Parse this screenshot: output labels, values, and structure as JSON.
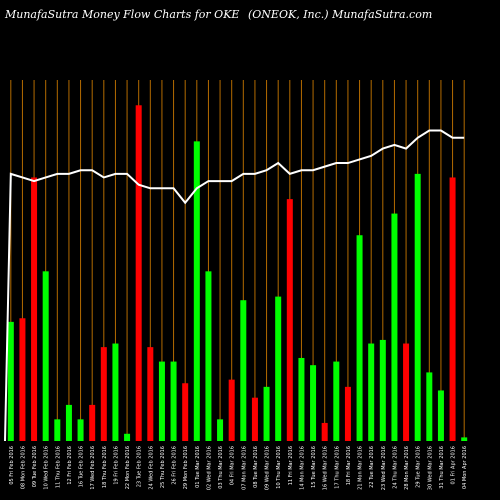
{
  "chart_data": {
    "type": "bar",
    "title": "MunafaSutra  Money Flow  Charts for OKE",
    "subtitle": "(ONEOK,  Inc.) MunafaSutra.com",
    "xlabel": "",
    "ylabel": "",
    "ylim": [
      0,
      100
    ],
    "grid": true,
    "colors": {
      "up": "#00ff00",
      "down": "#ff0000",
      "grid": "#b36b00",
      "line": "#ffffff",
      "background": "#000000"
    },
    "categories": [
      "05 Fri Feb 2016",
      "08 Mon Feb 2016",
      "09 Tue Feb 2016",
      "10 Wed Feb 2016",
      "11 Thu Feb 2016",
      "12 Fri Feb 2016",
      "16 Tue Feb 2016",
      "17 Wed Feb 2016",
      "18 Thu Feb 2016",
      "19 Fri Feb 2016",
      "22 Mon Feb 2016",
      "23 Tue Feb 2016",
      "24 Wed Feb 2016",
      "25 Thu Feb 2016",
      "26 Fri Feb 2016",
      "29 Mon Feb 2016",
      "01 Tue Mar 2016",
      "02 Wed Mar 2016",
      "03 Thu Mar 2016",
      "04 Fri Mar 2016",
      "07 Mon Mar 2016",
      "08 Tue Mar 2016",
      "09 Wed Mar 2016",
      "10 Thu Mar 2016",
      "11 Fri Mar 2016",
      "14 Mon Mar 2016",
      "15 Tue Mar 2016",
      "16 Wed Mar 2016",
      "17 Thu Mar 2016",
      "18 Fri Mar 2016",
      "21 Mon Mar 2016",
      "22 Tue Mar 2016",
      "23 Wed Mar 2016",
      "24 Thu Mar 2016",
      "28 Mon Mar 2016",
      "29 Tue Mar 2016",
      "30 Wed Mar 2016",
      "31 Thu Mar 2016",
      "01 Fri Apr 2016",
      "04 Mon Apr 2016"
    ],
    "bars": {
      "values": [
        33,
        34,
        73,
        47,
        6,
        10,
        6,
        10,
        26,
        27,
        2,
        93,
        26,
        22,
        22,
        16,
        83,
        47,
        6,
        17,
        39,
        12,
        15,
        40,
        67,
        23,
        21,
        5,
        22,
        15,
        57,
        27,
        28,
        63,
        27,
        74,
        19,
        14,
        73,
        1
      ],
      "direction": [
        "up",
        "down",
        "down",
        "up",
        "up",
        "up",
        "up",
        "down",
        "down",
        "up",
        "up",
        "down",
        "down",
        "up",
        "up",
        "down",
        "up",
        "up",
        "up",
        "down",
        "up",
        "down",
        "up",
        "up",
        "down",
        "up",
        "up",
        "down",
        "up",
        "down",
        "up",
        "up",
        "up",
        "up",
        "down",
        "up",
        "up",
        "up",
        "down",
        "up"
      ]
    },
    "line": {
      "values": [
        74,
        73,
        72,
        73,
        74,
        74,
        75,
        75,
        73,
        74,
        74,
        71,
        70,
        70,
        70,
        66,
        70,
        72,
        72,
        72,
        74,
        74,
        75,
        77,
        74,
        75,
        75,
        76,
        77,
        77,
        78,
        79,
        81,
        82,
        81,
        84,
        86,
        86,
        84,
        84
      ]
    }
  }
}
